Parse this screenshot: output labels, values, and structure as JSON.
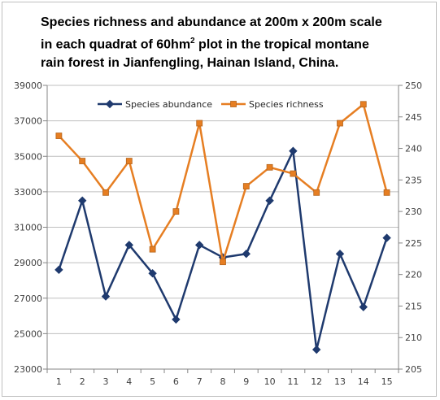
{
  "chart_data": {
    "type": "line",
    "title_lines": [
      "Species richness and abundance at 200m x 200m scale",
      "in each quadrat of 60hm",
      "2",
      " plot in the tropical montane",
      "rain forest in Jianfengling, Hainan Island, China."
    ],
    "categories": [
      "1",
      "2",
      "3",
      "4",
      "5",
      "6",
      "7",
      "8",
      "9",
      "10",
      "11",
      "12",
      "13",
      "14",
      "15"
    ],
    "left_axis": {
      "ylim": [
        23000,
        39000
      ],
      "ticks": [
        "23000",
        "25000",
        "27000",
        "29000",
        "31000",
        "33000",
        "35000",
        "37000",
        "39000"
      ]
    },
    "right_axis": {
      "ylim": [
        205,
        250
      ],
      "ticks": [
        "205",
        "210",
        "215",
        "220",
        "225",
        "230",
        "235",
        "240",
        "245",
        "250"
      ]
    },
    "series": [
      {
        "name": "Species abundance",
        "axis": "left",
        "color": "#1f3a6e",
        "marker": "diamond",
        "values": [
          28600,
          32500,
          27100,
          30000,
          28400,
          25800,
          30000,
          29300,
          29500,
          32500,
          35300,
          24100,
          29500,
          26500,
          30400
        ]
      },
      {
        "name": "Species richness",
        "axis": "right",
        "color": "#e67e22",
        "marker": "square",
        "values": [
          242,
          238,
          233,
          238,
          224,
          230,
          244,
          222,
          234,
          237,
          236,
          233,
          244,
          247,
          233
        ]
      }
    ],
    "legend_position": "top",
    "grid": "horizontal"
  }
}
